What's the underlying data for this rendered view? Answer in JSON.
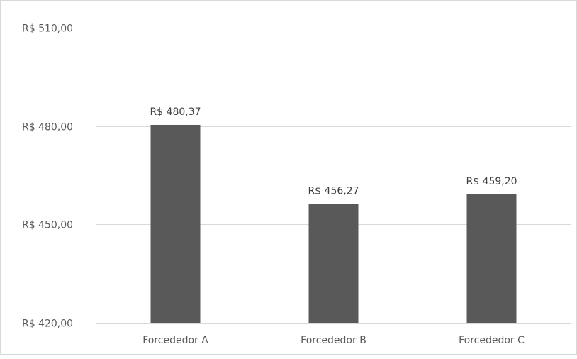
{
  "chart_data": {
    "type": "bar",
    "categories": [
      "Forcededor A",
      "Forcededor B",
      "Forcededor C"
    ],
    "values": [
      480.37,
      456.27,
      459.2
    ],
    "data_labels": [
      "R$ 480,37",
      "R$ 456,27",
      "R$ 459,20"
    ],
    "ylim": [
      420,
      510
    ],
    "y_ticks": [
      420,
      450,
      480,
      510
    ],
    "y_tick_labels": [
      "R$ 420,00",
      "R$ 450,00",
      "R$ 480,00",
      "R$ 510,00"
    ],
    "title": "",
    "xlabel": "",
    "ylabel": "",
    "grid": true,
    "legend": false,
    "colors": {
      "bar": "#595959",
      "grid": "#d9d9d9",
      "axis": "#d9d9d9"
    }
  }
}
